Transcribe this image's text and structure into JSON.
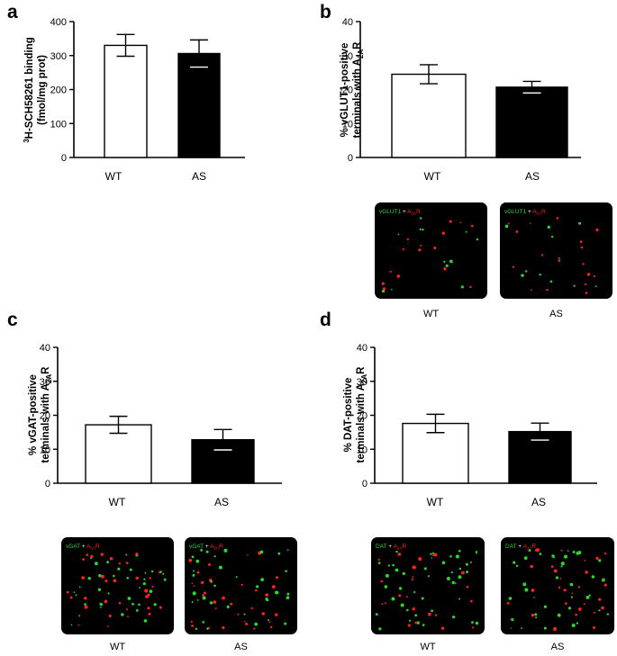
{
  "chart_data": [
    {
      "panel": "a",
      "type": "bar",
      "categories": [
        "WT",
        "AS"
      ],
      "values": [
        330,
        306
      ],
      "errors": [
        32,
        40
      ],
      "bar_colors": [
        "#ffffff",
        "#000000"
      ],
      "ylabel_lines": [
        "H-SCH58261 binding",
        "(fmol/mg prot)"
      ],
      "ylabel_superscript": "3",
      "yticks": [
        "0",
        "100",
        "200",
        "300",
        "400"
      ],
      "ylim": [
        0,
        400
      ]
    },
    {
      "panel": "b",
      "type": "bar",
      "categories": [
        "WT",
        "AS"
      ],
      "values": [
        24.5,
        20.7
      ],
      "errors": [
        2.8,
        1.7
      ],
      "bar_colors": [
        "#ffffff",
        "#000000"
      ],
      "ylabel_lines": [
        "% vGLUT1-positive",
        "terminals with A"
      ],
      "ylabel_sub": "2A",
      "ylabel_tail": "R",
      "yticks": [
        "0",
        "10",
        "20",
        "30",
        "40"
      ],
      "ylim": [
        0,
        40
      ]
    },
    {
      "panel": "c",
      "type": "bar",
      "categories": [
        "WT",
        "AS"
      ],
      "values": [
        17.2,
        12.8
      ],
      "errors": [
        2.5,
        3.0
      ],
      "bar_colors": [
        "#ffffff",
        "#000000"
      ],
      "ylabel_lines": [
        "% vGAT-positive",
        "terminals with A"
      ],
      "ylabel_sub": "2A",
      "ylabel_tail": "R",
      "yticks": [
        "0",
        "10",
        "20",
        "30",
        "40"
      ],
      "ylim": [
        0,
        40
      ]
    },
    {
      "panel": "d",
      "type": "bar",
      "categories": [
        "WT",
        "AS"
      ],
      "values": [
        17.6,
        15.2
      ],
      "errors": [
        2.7,
        2.5
      ],
      "bar_colors": [
        "#ffffff",
        "#000000"
      ],
      "ylabel_lines": [
        "% DAT-positive",
        "terminals with A"
      ],
      "ylabel_sub": "2A",
      "ylabel_tail": "R",
      "yticks": [
        "0",
        "10",
        "20",
        "30",
        "40"
      ],
      "ylim": [
        0,
        40
      ]
    }
  ],
  "micrographs": {
    "b": {
      "marker": "vGLUT1",
      "plus": "+",
      "receptor": "A",
      "receptor_sub": "2A",
      "receptor_tail": "R",
      "captions": [
        "WT",
        "AS"
      ]
    },
    "c": {
      "marker": "vGAT",
      "plus": "+",
      "receptor": "A",
      "receptor_sub": "2A",
      "receptor_tail": "R",
      "captions": [
        "WT",
        "AS"
      ]
    },
    "d": {
      "marker": "DAT",
      "plus": "+",
      "receptor": "A",
      "receptor_sub": "2A",
      "receptor_tail": "R",
      "captions": [
        "WT",
        "AS"
      ]
    }
  },
  "colors": {
    "marker_green": "#2fd62f",
    "receptor_red": "#ff2020",
    "plus_white": "#ffffff",
    "micrograph_bg": "#000000"
  }
}
